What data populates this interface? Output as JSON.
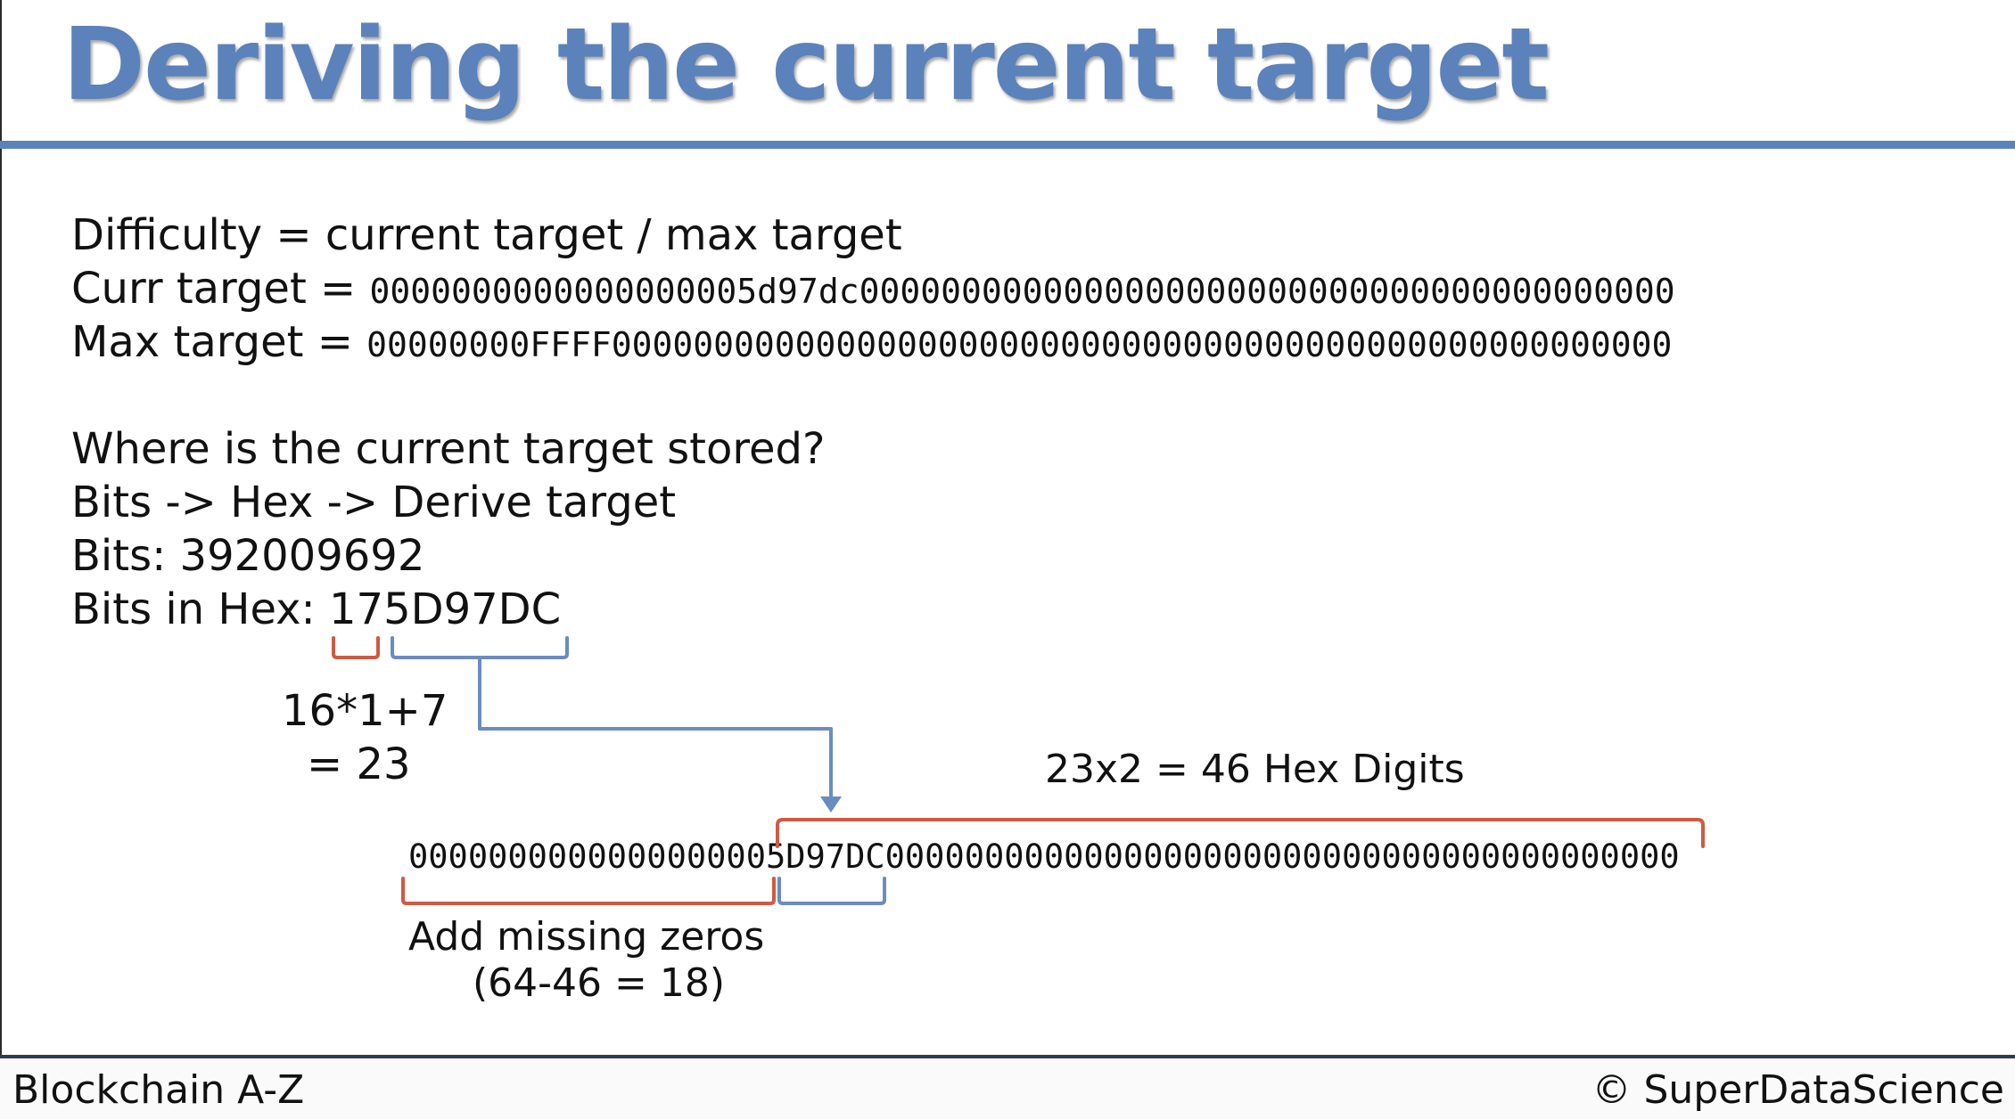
{
  "slide": {
    "title": "Deriving the current target",
    "difficulty_line": "Difficulty = current target / max target",
    "curr_target_label": "Curr target = ",
    "curr_target_value": "0000000000000000005d97dc0000000000000000000000000000000000000000",
    "max_target_label": "Max target = ",
    "max_target_value": "00000000FFFF0000000000000000000000000000000000000000000000000000",
    "question": "Where is the current target stored?",
    "steps": "Bits -> Hex -> Derive target",
    "bits_line": "Bits: 392009692",
    "bits_hex_label": "Bits in Hex: ",
    "bits_hex_exponent": "17",
    "bits_hex_coefficient": "5D97DC",
    "calc_line1": "16*1+7",
    "calc_line2": "= 23",
    "hex_digits_note": "23x2 = 46 Hex Digits",
    "target_zeros_prefix": "000000000000000000",
    "target_coefficient": "5D97DC",
    "target_zeros_suffix": "0000000000000000000000000000000000000000",
    "missing_zeros_line1": "Add missing zeros",
    "missing_zeros_line2": "(64-46 = 18)"
  },
  "footer": {
    "left": "Blockchain A-Z",
    "right": "© SuperDataScience"
  },
  "colors": {
    "title_blue": "#5b82ba",
    "bracket_red": "#cf5a43",
    "bracket_blue": "#6b8cc0",
    "footer_rule": "#2c3a4e"
  }
}
